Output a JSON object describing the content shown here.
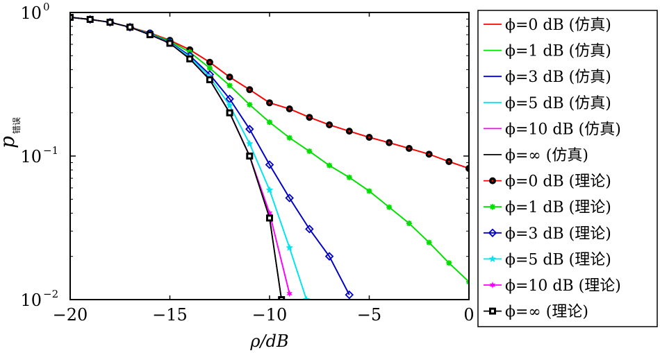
{
  "chart_data": {
    "type": "line",
    "title": "",
    "xlabel": "ρ/dB",
    "ylabel_main": "p",
    "ylabel_sub": "错误",
    "xlim": [
      -20,
      0
    ],
    "ylim": [
      0.01,
      1
    ],
    "yscale": "log",
    "xticks": [
      -20,
      -15,
      -10,
      -5,
      0
    ],
    "xtick_labels": [
      "−20",
      "−15",
      "−10",
      "−5",
      "0"
    ],
    "yticks": [
      {
        "base": "10",
        "exp": "0"
      },
      {
        "base": "10",
        "exp": "−1"
      },
      {
        "base": "10",
        "exp": "−2"
      }
    ],
    "legend_position": "right-outside",
    "series": [
      {
        "name": "ϕ=0 dB (仿真)",
        "color": "#ff0000",
        "marker": "none",
        "x": [
          -20,
          -19,
          -18,
          -17,
          -16,
          -15,
          -14,
          -13,
          -12,
          -11,
          -10,
          -9,
          -8,
          -7,
          -6,
          -5,
          -4,
          -3,
          -2,
          -1,
          0
        ],
        "y": [
          0.925,
          0.895,
          0.855,
          0.79,
          0.72,
          0.64,
          0.55,
          0.45,
          0.355,
          0.29,
          0.235,
          0.213,
          0.186,
          0.165,
          0.149,
          0.135,
          0.124,
          0.113,
          0.103,
          0.0915,
          0.082
        ]
      },
      {
        "name": "ϕ=1 dB (仿真)",
        "color": "#00e000",
        "marker": "none",
        "x": [
          -20,
          -19,
          -18,
          -17,
          -16,
          -15,
          -14,
          -13,
          -12,
          -11,
          -10,
          -9,
          -8,
          -7,
          -6,
          -5,
          -4,
          -3,
          -2,
          -1,
          0
        ],
        "y": [
          0.925,
          0.895,
          0.855,
          0.79,
          0.715,
          0.63,
          0.53,
          0.41,
          0.31,
          0.228,
          0.172,
          0.134,
          0.108,
          0.086,
          0.071,
          0.057,
          0.044,
          0.034,
          0.025,
          0.018,
          0.0133
        ]
      },
      {
        "name": "ϕ=3 dB (仿真)",
        "color": "#0000cc",
        "marker": "none",
        "x": [
          -20,
          -19,
          -18,
          -17,
          -16,
          -15,
          -14,
          -13,
          -12,
          -11,
          -10,
          -9,
          -8,
          -7,
          -6
        ],
        "y": [
          0.925,
          0.895,
          0.855,
          0.79,
          0.71,
          0.62,
          0.5,
          0.37,
          0.25,
          0.154,
          0.087,
          0.051,
          0.031,
          0.02,
          0.0108
        ]
      },
      {
        "name": "ϕ=5 dB (仿真)",
        "color": "#00e5ee",
        "marker": "none",
        "x": [
          -20,
          -19,
          -18,
          -17,
          -16,
          -15,
          -14,
          -13,
          -12,
          -11,
          -10,
          -9,
          -8.15
        ],
        "y": [
          0.925,
          0.895,
          0.855,
          0.79,
          0.705,
          0.615,
          0.49,
          0.355,
          0.225,
          0.122,
          0.058,
          0.023,
          0.01
        ]
      },
      {
        "name": "ϕ=10 dB (仿真)",
        "color": "#ff00ff",
        "marker": "none",
        "x": [
          -20,
          -19,
          -18,
          -17,
          -16,
          -15,
          -14,
          -13,
          -12,
          -11,
          -10,
          -9
        ],
        "y": [
          0.925,
          0.895,
          0.855,
          0.79,
          0.7,
          0.61,
          0.475,
          0.34,
          0.2,
          0.1,
          0.04,
          0.011
        ]
      },
      {
        "name": "ϕ=∞ (仿真)",
        "color": "#000000",
        "marker": "none",
        "x": [
          -20,
          -19,
          -18,
          -17,
          -16,
          -15,
          -14,
          -13,
          -12,
          -11,
          -10,
          -9.4
        ],
        "y": [
          0.925,
          0.895,
          0.855,
          0.79,
          0.7,
          0.61,
          0.475,
          0.34,
          0.2,
          0.1,
          0.037,
          0.01
        ]
      },
      {
        "name": "ϕ=0 dB (理论)",
        "color": "#ff0000",
        "marker": "circle",
        "x": [
          -20,
          -19,
          -18,
          -17,
          -16,
          -15,
          -14,
          -13,
          -12,
          -11,
          -10,
          -9,
          -8,
          -7,
          -6,
          -5,
          -4,
          -3,
          -2,
          -1,
          0
        ],
        "y": [
          0.925,
          0.895,
          0.855,
          0.79,
          0.72,
          0.64,
          0.55,
          0.45,
          0.355,
          0.29,
          0.235,
          0.213,
          0.186,
          0.165,
          0.149,
          0.135,
          0.124,
          0.113,
          0.103,
          0.0915,
          0.082
        ]
      },
      {
        "name": "ϕ=1 dB (理论)",
        "color": "#00e000",
        "marker": "star",
        "x": [
          -20,
          -19,
          -18,
          -17,
          -16,
          -15,
          -14,
          -13,
          -12,
          -11,
          -10,
          -9,
          -8,
          -7,
          -6,
          -5,
          -4,
          -3,
          -2,
          -1,
          0
        ],
        "y": [
          0.925,
          0.895,
          0.855,
          0.79,
          0.715,
          0.63,
          0.53,
          0.41,
          0.31,
          0.228,
          0.172,
          0.134,
          0.108,
          0.086,
          0.071,
          0.057,
          0.044,
          0.034,
          0.025,
          0.018,
          0.0133
        ]
      },
      {
        "name": "ϕ=3 dB (理论)",
        "color": "#0000cc",
        "marker": "diamond",
        "x": [
          -20,
          -19,
          -18,
          -17,
          -16,
          -15,
          -14,
          -13,
          -12,
          -11,
          -10,
          -9,
          -8,
          -7,
          -6
        ],
        "y": [
          0.925,
          0.895,
          0.855,
          0.79,
          0.71,
          0.62,
          0.5,
          0.37,
          0.25,
          0.154,
          0.087,
          0.051,
          0.031,
          0.02,
          0.0108
        ]
      },
      {
        "name": "ϕ=5 dB (理论)",
        "color": "#00e5ee",
        "marker": "pentagram",
        "x": [
          -20,
          -19,
          -18,
          -17,
          -16,
          -15,
          -14,
          -13,
          -12,
          -11,
          -10,
          -9,
          -8.15
        ],
        "y": [
          0.925,
          0.895,
          0.855,
          0.79,
          0.705,
          0.615,
          0.49,
          0.355,
          0.225,
          0.122,
          0.058,
          0.023,
          0.01
        ]
      },
      {
        "name": "ϕ=10 dB (理论)",
        "color": "#ff00ff",
        "marker": "hexagram",
        "x": [
          -20,
          -19,
          -18,
          -17,
          -16,
          -15,
          -14,
          -13,
          -12,
          -11,
          -10,
          -9
        ],
        "y": [
          0.925,
          0.895,
          0.855,
          0.79,
          0.7,
          0.61,
          0.475,
          0.34,
          0.2,
          0.1,
          0.04,
          0.011
        ]
      },
      {
        "name": "ϕ=∞ (理论)",
        "color": "#000000",
        "marker": "square",
        "x": [
          -20,
          -19,
          -18,
          -17,
          -16,
          -15,
          -14,
          -13,
          -12,
          -11,
          -10,
          -9.4
        ],
        "y": [
          0.925,
          0.895,
          0.855,
          0.79,
          0.7,
          0.61,
          0.475,
          0.34,
          0.2,
          0.1,
          0.037,
          0.01
        ]
      }
    ]
  }
}
